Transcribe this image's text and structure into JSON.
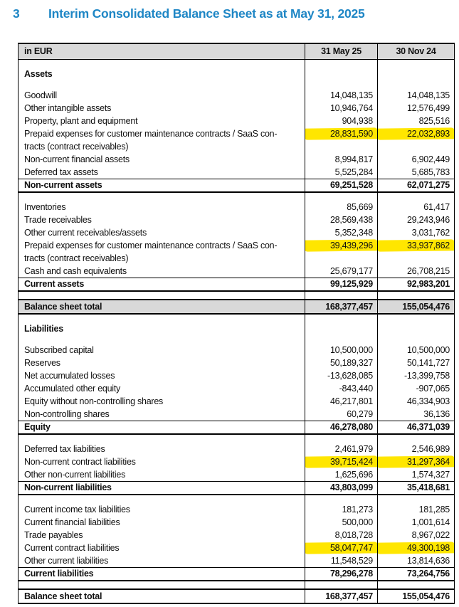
{
  "page": {
    "heading_number": "3",
    "heading_title": "Interim Consolidated Balance Sheet as at May 31, 2025"
  },
  "colors": {
    "title_blue": "#1e86c5",
    "header_gray": "#d9d9d9",
    "highlight_yellow": "#ffe600"
  },
  "table": {
    "columns": [
      "in EUR",
      "31 May 25",
      "30 Nov 24"
    ],
    "rows": [
      {
        "type": "spacer"
      },
      {
        "type": "section",
        "label": "Assets"
      },
      {
        "type": "spacer"
      },
      {
        "type": "item",
        "label": "Goodwill",
        "v1": "14,048,135",
        "v2": "14,048,135"
      },
      {
        "type": "item",
        "label": "Other intangible assets",
        "v1": "10,946,764",
        "v2": "12,576,499"
      },
      {
        "type": "item",
        "label": "Property, plant and equipment",
        "v1": "904,938",
        "v2": "825,516"
      },
      {
        "type": "item",
        "label": "Prepaid expenses for customer maintenance contracts / SaaS con-",
        "v1": "28,831,590",
        "v2": "22,032,893",
        "hl": true
      },
      {
        "type": "item",
        "label": "tracts (contract receivables)",
        "v1": "",
        "v2": ""
      },
      {
        "type": "item",
        "label": "Non-current financial assets",
        "v1": "8,994,817",
        "v2": "6,902,449"
      },
      {
        "type": "item",
        "label": "Deferred tax assets",
        "v1": "5,525,284",
        "v2": "5,685,783"
      },
      {
        "type": "total",
        "label": "Non-current assets",
        "v1": "69,251,528",
        "v2": "62,071,275"
      },
      {
        "type": "spacer"
      },
      {
        "type": "item",
        "label": "Inventories",
        "v1": "85,669",
        "v2": "61,417"
      },
      {
        "type": "item",
        "label": "Trade receivables",
        "v1": "28,569,438",
        "v2": "29,243,946"
      },
      {
        "type": "item",
        "label": "Other current receivables/assets",
        "v1": "5,352,348",
        "v2": "3,031,762"
      },
      {
        "type": "item",
        "label": "Prepaid expenses for customer maintenance contracts / SaaS con-",
        "v1": "39,439,296",
        "v2": "33,937,862",
        "hl": true
      },
      {
        "type": "item",
        "label": "tracts (contract receivables)",
        "v1": "",
        "v2": ""
      },
      {
        "type": "item",
        "label": "Cash and cash equivalents",
        "v1": "25,679,177",
        "v2": "26,708,215"
      },
      {
        "type": "total",
        "label": "Current assets",
        "v1": "99,125,929",
        "v2": "92,983,201"
      },
      {
        "type": "spacer"
      },
      {
        "type": "grand",
        "label": "Balance sheet total",
        "v1": "168,377,457",
        "v2": "155,054,476"
      },
      {
        "type": "spacer"
      },
      {
        "type": "section",
        "label": "Liabilities"
      },
      {
        "type": "spacer"
      },
      {
        "type": "item",
        "label": "Subscribed capital",
        "v1": "10,500,000",
        "v2": "10,500,000"
      },
      {
        "type": "item",
        "label": "Reserves",
        "v1": "50,189,327",
        "v2": "50,141,727"
      },
      {
        "type": "item",
        "label": "Net accumulated losses",
        "v1": "-13,628,085",
        "v2": "-13,399,758"
      },
      {
        "type": "item",
        "label": "Accumulated other equity",
        "v1": "-843,440",
        "v2": "-907,065"
      },
      {
        "type": "item",
        "label": "Equity without non-controlling shares",
        "v1": "46,217,801",
        "v2": "46,334,903"
      },
      {
        "type": "item",
        "label": "Non-controlling shares",
        "v1": "60,279",
        "v2": "36,136"
      },
      {
        "type": "total",
        "label": "Equity",
        "v1": "46,278,080",
        "v2": "46,371,039"
      },
      {
        "type": "spacer"
      },
      {
        "type": "item",
        "label": "Deferred tax liabilities",
        "v1": "2,461,979",
        "v2": "2,546,989"
      },
      {
        "type": "item",
        "label": "Non-current contract liabilities",
        "v1": "39,715,424",
        "v2": "31,297,364",
        "hl": true
      },
      {
        "type": "item",
        "label": "Other non-current liabilities",
        "v1": "1,625,696",
        "v2": "1,574,327"
      },
      {
        "type": "total",
        "label": "Non-current liabilities",
        "v1": "43,803,099",
        "v2": "35,418,681"
      },
      {
        "type": "spacer"
      },
      {
        "type": "item",
        "label": "Current income tax liabilities",
        "v1": "181,273",
        "v2": "181,285"
      },
      {
        "type": "item",
        "label": "Current financial liabilities",
        "v1": "500,000",
        "v2": "1,001,614"
      },
      {
        "type": "item",
        "label": "Trade payables",
        "v1": "8,018,728",
        "v2": "8,967,022"
      },
      {
        "type": "item",
        "label": "Current contract liabilities",
        "v1": "58,047,747",
        "v2": "49,300,198",
        "hl": true
      },
      {
        "type": "item",
        "label": "Other current liabilities",
        "v1": "11,548,529",
        "v2": "13,814,636"
      },
      {
        "type": "total",
        "label": "Current liabilities",
        "v1": "78,296,278",
        "v2": "73,264,756"
      },
      {
        "type": "spacer"
      },
      {
        "type": "grand2",
        "label": "Balance sheet total",
        "v1": "168,377,457",
        "v2": "155,054,476"
      }
    ]
  }
}
